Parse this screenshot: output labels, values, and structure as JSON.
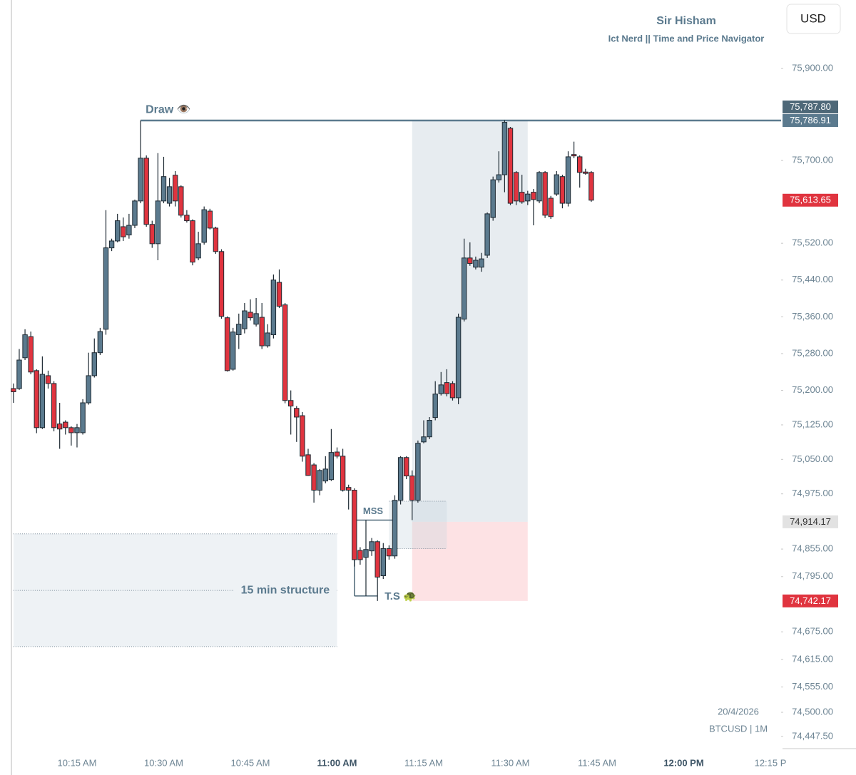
{
  "header": {
    "title": "Sir Hisham",
    "subtitle": "Ict Nerd || Time and Price Navigator",
    "currency": "USD"
  },
  "footer": {
    "date": "20/4/2026",
    "symbol": "BTCUSD | 1M"
  },
  "chart_data": {
    "type": "candlestick",
    "up_color": "#5b7a8e",
    "down_color": "#e0343f",
    "outline_color": "#1e2a33",
    "bold_hour_ticks": true,
    "xlim": [
      601.67,
      736.85
    ],
    "ylim": [
      74421,
      76049
    ],
    "xticks": [
      {
        "value": 615,
        "label": "10:15 AM"
      },
      {
        "value": 630,
        "label": "10:30 AM"
      },
      {
        "value": 645,
        "label": "10:45 AM"
      },
      {
        "value": 660,
        "label": "11:00 AM"
      },
      {
        "value": 675,
        "label": "11:15 AM"
      },
      {
        "value": 690,
        "label": "11:30 AM"
      },
      {
        "value": 705,
        "label": "11:45 AM"
      },
      {
        "value": 720,
        "label": "12:00 PM"
      },
      {
        "value": 735,
        "label": "12:15 P"
      }
    ],
    "yticks": [
      {
        "value": 75900,
        "label": "75,900.00"
      },
      {
        "value": 75700,
        "label": "75,700.00"
      },
      {
        "value": 75520,
        "label": "75,520.00"
      },
      {
        "value": 75440,
        "label": "75,440.00"
      },
      {
        "value": 75360,
        "label": "75,360.00"
      },
      {
        "value": 75280,
        "label": "75,280.00"
      },
      {
        "value": 75200,
        "label": "75,200.00"
      },
      {
        "value": 75125,
        "label": "75,125.00"
      },
      {
        "value": 75050,
        "label": "75,050.00"
      },
      {
        "value": 74975,
        "label": "74,975.00"
      },
      {
        "value": 74855,
        "label": "74,855.00"
      },
      {
        "value": 74795,
        "label": "74,795.00"
      },
      {
        "value": 74675,
        "label": "74,675.00"
      },
      {
        "value": 74615,
        "label": "74,615.00"
      },
      {
        "value": 74555,
        "label": "74,555.00"
      },
      {
        "value": 74500,
        "label": "74,500.00"
      },
      {
        "value": 74447.5,
        "label": "74,447.50"
      }
    ],
    "price_labels": [
      {
        "value": 75787.8,
        "label": "75,787.80",
        "color": "#4e6878",
        "text_color": "#ffffff"
      },
      {
        "value": 75786.91,
        "label": "75,786.91",
        "color": "#5b7a8e",
        "text_color": "#ffffff"
      },
      {
        "value": 75613.65,
        "label": "75,613.65",
        "color": "#e0343f",
        "text_color": "#ffffff"
      },
      {
        "value": 74914.17,
        "label": "74,914.17",
        "color": "#e2e2e2",
        "text_color": "#333333"
      },
      {
        "value": 74742.17,
        "label": "74,742.17",
        "color": "#e0343f",
        "text_color": "#ffffff"
      }
    ],
    "levels": [
      {
        "label": "Draw 👁️",
        "value": 75786.91,
        "x_start": 626
      }
    ],
    "markers": [
      {
        "label": "MSS",
        "value": 74918,
        "x_start": 664,
        "x_end": 670
      },
      {
        "label": "T.S 🐢",
        "value": 74753,
        "x_start": 664,
        "x_end": 667
      }
    ],
    "structure_zone": {
      "label": "15 min structure",
      "top": 74888,
      "bottom": 74643,
      "mid": 74765,
      "x_start": 604,
      "x_end": 660
    },
    "imbalance": {
      "top": 74959,
      "bottom": 74856,
      "x_start": 669,
      "x_end": 679
    },
    "position": {
      "target": 75786.91,
      "entry": 74914.17,
      "stop": 74742.17,
      "x_start": 673,
      "x_end": 693
    },
    "x": [
      604,
      605,
      606,
      607,
      608,
      609,
      610,
      611,
      612,
      613,
      614,
      615,
      616,
      617,
      618,
      619,
      620,
      621,
      622,
      623,
      624,
      625,
      626,
      627,
      628,
      629,
      630,
      631,
      632,
      633,
      634,
      635,
      636,
      637,
      638,
      639,
      640,
      641,
      642,
      643,
      644,
      645,
      646,
      647,
      648,
      649,
      650,
      651,
      652,
      653,
      654,
      655,
      656,
      657,
      658,
      659,
      660,
      661,
      662,
      663,
      664,
      665,
      666,
      667,
      668,
      669,
      670,
      671,
      672,
      673,
      674,
      675,
      676,
      677,
      678,
      679,
      680,
      681,
      682,
      683,
      684,
      685,
      686,
      687,
      688,
      689,
      690,
      691,
      692,
      693,
      694,
      695,
      696,
      697,
      698,
      699,
      700,
      701,
      702,
      703,
      704
    ],
    "candles": [
      {
        "o": 75204,
        "h": 75215,
        "l": 75173,
        "c": 75197
      },
      {
        "o": 75204,
        "h": 75290,
        "l": 75201,
        "c": 75266
      },
      {
        "o": 75271,
        "h": 75333,
        "l": 75266,
        "c": 75321
      },
      {
        "o": 75317,
        "h": 75328,
        "l": 75235,
        "c": 75240
      },
      {
        "o": 75243,
        "h": 75246,
        "l": 75107,
        "c": 75119
      },
      {
        "o": 75119,
        "h": 75274,
        "l": 75116,
        "c": 75235
      },
      {
        "o": 75232,
        "h": 75243,
        "l": 75204,
        "c": 75215
      },
      {
        "o": 75215,
        "h": 75220,
        "l": 75111,
        "c": 75119
      },
      {
        "o": 75127,
        "h": 75173,
        "l": 75073,
        "c": 75116
      },
      {
        "o": 75131,
        "h": 75135,
        "l": 75104,
        "c": 75119
      },
      {
        "o": 75119,
        "h": 75122,
        "l": 75080,
        "c": 75108
      },
      {
        "o": 75108,
        "h": 75127,
        "l": 75076,
        "c": 75119
      },
      {
        "o": 75108,
        "h": 75181,
        "l": 75104,
        "c": 75173
      },
      {
        "o": 75173,
        "h": 75282,
        "l": 75169,
        "c": 75232
      },
      {
        "o": 75232,
        "h": 75313,
        "l": 75228,
        "c": 75282
      },
      {
        "o": 75282,
        "h": 75336,
        "l": 75277,
        "c": 75328
      },
      {
        "o": 75333,
        "h": 75592,
        "l": 75321,
        "c": 75510
      },
      {
        "o": 75510,
        "h": 75530,
        "l": 75503,
        "c": 75525
      },
      {
        "o": 75525,
        "h": 75584,
        "l": 75522,
        "c": 75569
      },
      {
        "o": 75556,
        "h": 75576,
        "l": 75525,
        "c": 75534
      },
      {
        "o": 75538,
        "h": 75584,
        "l": 75530,
        "c": 75559
      },
      {
        "o": 75559,
        "h": 75615,
        "l": 75553,
        "c": 75612
      },
      {
        "o": 75612,
        "h": 75786.91,
        "l": 75607,
        "c": 75705
      },
      {
        "o": 75705,
        "h": 75711,
        "l": 75556,
        "c": 75561
      },
      {
        "o": 75561,
        "h": 75569,
        "l": 75510,
        "c": 75519
      },
      {
        "o": 75519,
        "h": 75716,
        "l": 75483,
        "c": 75612
      },
      {
        "o": 75612,
        "h": 75708,
        "l": 75607,
        "c": 75665
      },
      {
        "o": 75607,
        "h": 75662,
        "l": 75600,
        "c": 75643
      },
      {
        "o": 75668,
        "h": 75677,
        "l": 75600,
        "c": 75612
      },
      {
        "o": 75643,
        "h": 75646,
        "l": 75576,
        "c": 75581
      },
      {
        "o": 75581,
        "h": 75592,
        "l": 75565,
        "c": 75569
      },
      {
        "o": 75569,
        "h": 75572,
        "l": 75472,
        "c": 75479
      },
      {
        "o": 75488,
        "h": 75545,
        "l": 75483,
        "c": 75519
      },
      {
        "o": 75522,
        "h": 75600,
        "l": 75517,
        "c": 75593
      },
      {
        "o": 75590,
        "h": 75595,
        "l": 75550,
        "c": 75553
      },
      {
        "o": 75553,
        "h": 75556,
        "l": 75497,
        "c": 75502
      },
      {
        "o": 75502,
        "h": 75507,
        "l": 75356,
        "c": 75361
      },
      {
        "o": 75358,
        "h": 75361,
        "l": 75241,
        "c": 75243
      },
      {
        "o": 75246,
        "h": 75336,
        "l": 75243,
        "c": 75327
      },
      {
        "o": 75321,
        "h": 75367,
        "l": 75290,
        "c": 75344
      },
      {
        "o": 75334,
        "h": 75390,
        "l": 75324,
        "c": 75373
      },
      {
        "o": 75370,
        "h": 75398,
        "l": 75352,
        "c": 75358
      },
      {
        "o": 75344,
        "h": 75401,
        "l": 75339,
        "c": 75367
      },
      {
        "o": 75359,
        "h": 75390,
        "l": 75290,
        "c": 75297
      },
      {
        "o": 75297,
        "h": 75344,
        "l": 75293,
        "c": 75325
      },
      {
        "o": 75321,
        "h": 75452,
        "l": 75313,
        "c": 75440
      },
      {
        "o": 75435,
        "h": 75463,
        "l": 75379,
        "c": 75383
      },
      {
        "o": 75386,
        "h": 75390,
        "l": 75172,
        "c": 75178
      },
      {
        "o": 75178,
        "h": 75200,
        "l": 75104,
        "c": 75166
      },
      {
        "o": 75161,
        "h": 75166,
        "l": 75088,
        "c": 75142
      },
      {
        "o": 75145,
        "h": 75153,
        "l": 75045,
        "c": 75057
      },
      {
        "o": 75060,
        "h": 75073,
        "l": 75014,
        "c": 75015
      },
      {
        "o": 75038,
        "h": 75042,
        "l": 74956,
        "c": 74983
      },
      {
        "o": 74983,
        "h": 75029,
        "l": 74972,
        "c": 75026
      },
      {
        "o": 75003,
        "h": 75057,
        "l": 74998,
        "c": 75029
      },
      {
        "o": 75006,
        "h": 75116,
        "l": 75003,
        "c": 75065
      },
      {
        "o": 75066,
        "h": 75076,
        "l": 75052,
        "c": 75057
      },
      {
        "o": 75057,
        "h": 75073,
        "l": 74980,
        "c": 74983
      },
      {
        "o": 74989,
        "h": 74995,
        "l": 74941,
        "c": 74983
      },
      {
        "o": 74983,
        "h": 74987,
        "l": 74817,
        "c": 74832
      },
      {
        "o": 74852,
        "h": 74859,
        "l": 74821,
        "c": 74832
      },
      {
        "o": 74837,
        "h": 74918,
        "l": 74753,
        "c": 74854
      },
      {
        "o": 74851,
        "h": 74879,
        "l": 74840,
        "c": 74871
      },
      {
        "o": 74871,
        "h": 74874,
        "l": 74742.17,
        "c": 74794
      },
      {
        "o": 74797,
        "h": 74868,
        "l": 74790,
        "c": 74856
      },
      {
        "o": 74856,
        "h": 74863,
        "l": 74832,
        "c": 74840
      },
      {
        "o": 74840,
        "h": 74972,
        "l": 74834,
        "c": 74961
      },
      {
        "o": 74961,
        "h": 75057,
        "l": 74952,
        "c": 75054
      },
      {
        "o": 75054,
        "h": 75057,
        "l": 75007,
        "c": 75014
      },
      {
        "o": 75014,
        "h": 75026,
        "l": 74918,
        "c": 74961
      },
      {
        "o": 74961,
        "h": 75091,
        "l": 74956,
        "c": 75085
      },
      {
        "o": 75088,
        "h": 75135,
        "l": 75085,
        "c": 75099
      },
      {
        "o": 75099,
        "h": 75142,
        "l": 75094,
        "c": 75135
      },
      {
        "o": 75141,
        "h": 75220,
        "l": 75135,
        "c": 75192
      },
      {
        "o": 75193,
        "h": 75240,
        "l": 75189,
        "c": 75212
      },
      {
        "o": 75217,
        "h": 75246,
        "l": 75187,
        "c": 75193
      },
      {
        "o": 75215,
        "h": 75220,
        "l": 75178,
        "c": 75184
      },
      {
        "o": 75184,
        "h": 75367,
        "l": 75170,
        "c": 75359
      },
      {
        "o": 75355,
        "h": 75530,
        "l": 75350,
        "c": 75488
      },
      {
        "o": 75488,
        "h": 75522,
        "l": 75471,
        "c": 75476
      },
      {
        "o": 75468,
        "h": 75491,
        "l": 75463,
        "c": 75483
      },
      {
        "o": 75468,
        "h": 75499,
        "l": 75458,
        "c": 75486
      },
      {
        "o": 75494,
        "h": 75587,
        "l": 75488,
        "c": 75584
      },
      {
        "o": 75576,
        "h": 75665,
        "l": 75569,
        "c": 75658
      },
      {
        "o": 75658,
        "h": 75720,
        "l": 75652,
        "c": 75669
      },
      {
        "o": 75669,
        "h": 75787.8,
        "l": 75631,
        "c": 75783
      },
      {
        "o": 75770,
        "h": 75773,
        "l": 75603,
        "c": 75607
      },
      {
        "o": 75674,
        "h": 75677,
        "l": 75603,
        "c": 75612
      },
      {
        "o": 75631,
        "h": 75669,
        "l": 75606,
        "c": 75610
      },
      {
        "o": 75612,
        "h": 75634,
        "l": 75603,
        "c": 75627
      },
      {
        "o": 75631,
        "h": 75638,
        "l": 75559,
        "c": 75615
      },
      {
        "o": 75612,
        "h": 75677,
        "l": 75607,
        "c": 75674
      },
      {
        "o": 75674,
        "h": 75677,
        "l": 75575,
        "c": 75581
      },
      {
        "o": 75618,
        "h": 75623,
        "l": 75573,
        "c": 75578
      },
      {
        "o": 75627,
        "h": 75677,
        "l": 75623,
        "c": 75669
      },
      {
        "o": 75665,
        "h": 75669,
        "l": 75596,
        "c": 75607
      },
      {
        "o": 75607,
        "h": 75720,
        "l": 75600,
        "c": 75708
      },
      {
        "o": 75713,
        "h": 75741,
        "l": 75705,
        "c": 75710
      },
      {
        "o": 75708,
        "h": 75711,
        "l": 75641,
        "c": 75674
      },
      {
        "o": 75675,
        "h": 75682,
        "l": 75669,
        "c": 75672
      },
      {
        "o": 75674,
        "h": 75677,
        "l": 75610,
        "c": 75613.65
      }
    ]
  }
}
